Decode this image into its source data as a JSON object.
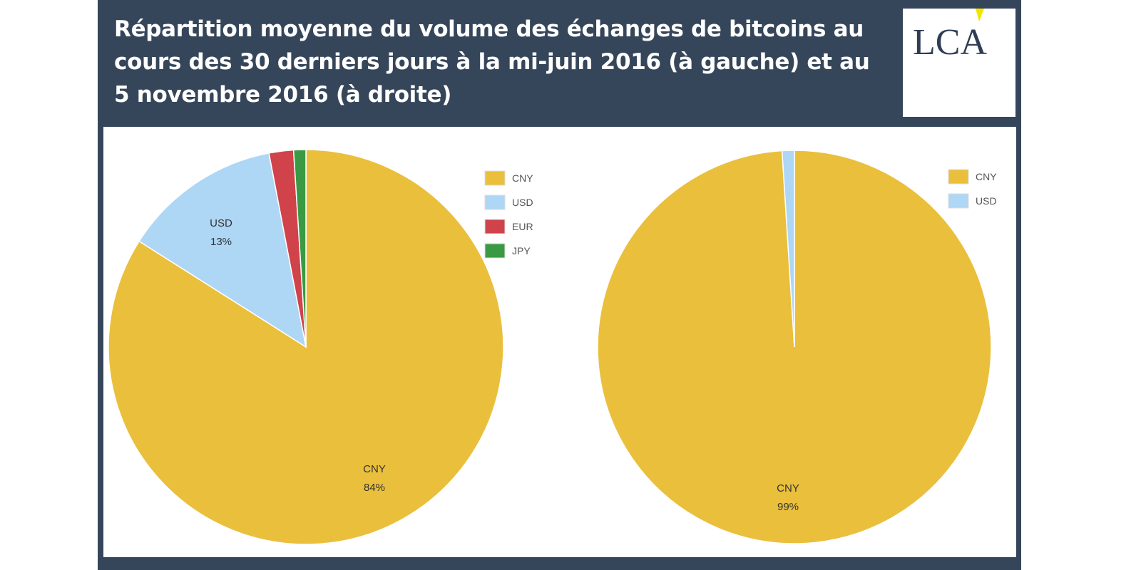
{
  "title": "Répartition moyenne du volume des échanges de bitcoins au cours des 30 derniers jours à la mi-juin 2016 (à gauche) et au 5 novembre 2016 (à droite)",
  "logo": "LCA",
  "colors": {
    "CNY": "#eabf3c",
    "USD": "#aed6f5",
    "EUR": "#d0434a",
    "JPY": "#3a9a44"
  },
  "chart_data": [
    {
      "type": "pie",
      "title": "mi-juin 2016",
      "categories": [
        "CNY",
        "USD",
        "EUR",
        "JPY"
      ],
      "values": [
        84,
        13,
        2,
        1
      ],
      "labels": [
        {
          "name": "CNY",
          "pct": "84%"
        },
        {
          "name": "USD",
          "pct": "13%"
        }
      ],
      "legend": "top-right"
    },
    {
      "type": "pie",
      "title": "5 novembre 2016",
      "categories": [
        "CNY",
        "USD"
      ],
      "values": [
        99,
        1
      ],
      "labels": [
        {
          "name": "CNY",
          "pct": "99%"
        }
      ],
      "legend": "top-right"
    }
  ]
}
